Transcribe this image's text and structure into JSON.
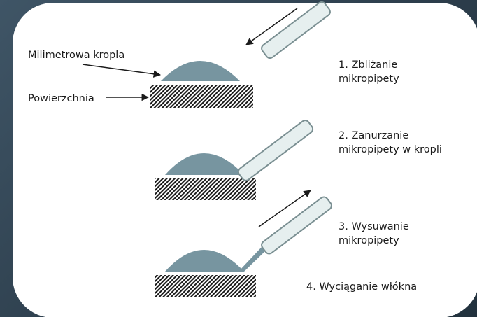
{
  "colors": {
    "panel": "#ffffff",
    "drop": "#7795a0",
    "pipette_fill": "#e6efef",
    "pipette_stroke": "#7a8f92",
    "hatch": "#1a1a1a"
  },
  "labels": {
    "drop": "Milimetrowa kropla",
    "surface": "Powierzchnia"
  },
  "steps": [
    {
      "line1": "1. Zbliżanie",
      "line2": "mikropipety"
    },
    {
      "line1": "2. Zanurzanie",
      "line2": "mikropipety w kropli"
    },
    {
      "line1": "3. Wysuwanie",
      "line2": "mikropipety"
    },
    {
      "line1": "4. Wyciąganie włókna",
      "line2": ""
    }
  ]
}
